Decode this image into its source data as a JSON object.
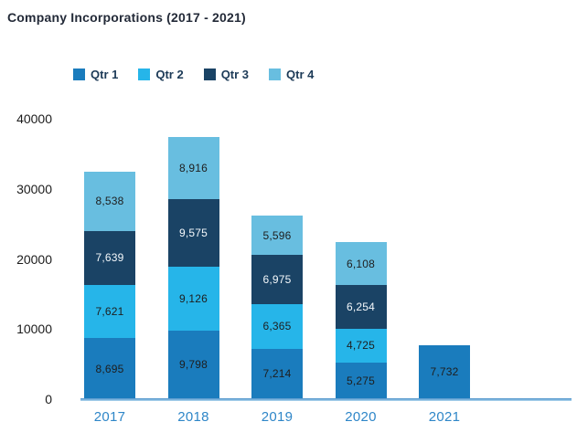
{
  "chart_data": {
    "type": "bar",
    "subtype": "stacked-vertical",
    "title": "Company Incorporations (2017 - 2021)",
    "categories": [
      "2017",
      "2018",
      "2019",
      "2020",
      "2021"
    ],
    "series": [
      {
        "name": "Qtr 1",
        "color": "#1a7cbd",
        "label_color": "#1e1e1e",
        "values": [
          8695,
          9798,
          7214,
          5275,
          7732
        ],
        "labels": [
          "8,695",
          "9,798",
          "7,214",
          "5,275",
          "7,732"
        ]
      },
      {
        "name": "Qtr 2",
        "color": "#26b5e9",
        "label_color": "#1e1e1e",
        "values": [
          7621,
          9126,
          6365,
          4725,
          0
        ],
        "labels": [
          "7,621",
          "9,126",
          "6,365",
          "4,725",
          ""
        ]
      },
      {
        "name": "Qtr 3",
        "color": "#1a4365",
        "label_color": "#f4f8fb",
        "values": [
          7639,
          9575,
          6975,
          6254,
          0
        ],
        "labels": [
          "7,639",
          "9,575",
          "6,975",
          "6,254",
          ""
        ]
      },
      {
        "name": "Qtr 4",
        "color": "#68bee0",
        "label_color": "#1e1e1e",
        "values": [
          8538,
          8916,
          5596,
          6108,
          0
        ],
        "labels": [
          "8,538",
          "8,916",
          "5,596",
          "6,108",
          ""
        ]
      }
    ],
    "totals": [
      32493,
      37415,
      26150,
      22362,
      7732
    ],
    "ylim": [
      0,
      40000
    ],
    "yticks": [
      0,
      10000,
      20000,
      30000,
      40000
    ],
    "ytick_labels": [
      "0",
      "10000",
      "20000",
      "30000",
      "40000"
    ],
    "grid": "off",
    "legend_position": "top",
    "colors": {
      "axis_line": "#7db5de",
      "xtick_label": "#2e86c8",
      "ytick_label": "#1b1b1b",
      "title_text": "#232a38",
      "legend_text": "#1c3a57"
    }
  }
}
